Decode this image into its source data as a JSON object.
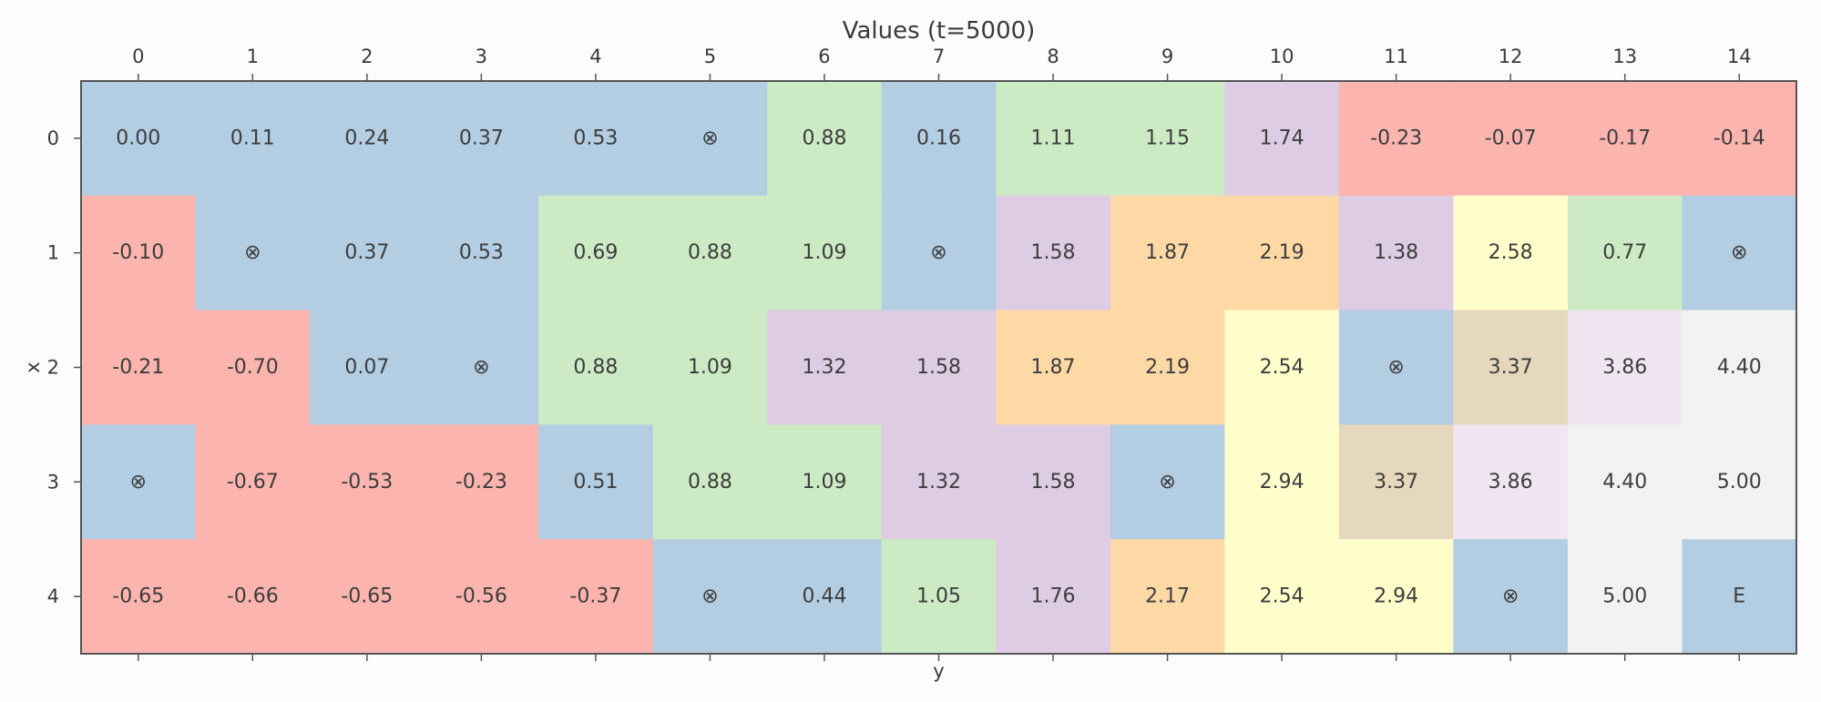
{
  "chart_data": {
    "type": "heatmap",
    "title": "Values (t=5000)",
    "xlabel": "y",
    "ylabel": "x",
    "x_ticks": [
      "0",
      "1",
      "2",
      "3",
      "4",
      "5",
      "6",
      "7",
      "8",
      "9",
      "10",
      "11",
      "12",
      "13",
      "14"
    ],
    "y_ticks": [
      "0",
      "1",
      "2",
      "3",
      "4"
    ],
    "tick_position_x": "top",
    "values": [
      [
        "0.00",
        "0.11",
        "0.24",
        "0.37",
        "0.53",
        "⊗",
        "0.88",
        "0.16",
        "1.11",
        "1.15",
        "1.74",
        "-0.23",
        "-0.07",
        "-0.17",
        "-0.14"
      ],
      [
        "-0.10",
        "⊗",
        "0.37",
        "0.53",
        "0.69",
        "0.88",
        "1.09",
        "⊗",
        "1.58",
        "1.87",
        "2.19",
        "1.38",
        "2.58",
        "0.77",
        "⊗"
      ],
      [
        "-0.21",
        "-0.70",
        "0.07",
        "⊗",
        "0.88",
        "1.09",
        "1.32",
        "1.58",
        "1.87",
        "2.19",
        "2.54",
        "⊗",
        "3.37",
        "3.86",
        "4.40"
      ],
      [
        "⊗",
        "-0.67",
        "-0.53",
        "-0.23",
        "0.51",
        "0.88",
        "1.09",
        "1.32",
        "1.58",
        "⊗",
        "2.94",
        "3.37",
        "3.86",
        "4.40",
        "5.00"
      ],
      [
        "-0.65",
        "-0.66",
        "-0.65",
        "-0.56",
        "-0.37",
        "⊗",
        "0.44",
        "1.05",
        "1.76",
        "2.17",
        "2.54",
        "2.94",
        "⊗",
        "5.00",
        "E"
      ]
    ],
    "cell_colors": [
      [
        "#b3cde3",
        "#b3cde3",
        "#b3cde3",
        "#b3cde3",
        "#b3cde3",
        "#b3cde3",
        "#ccebc5",
        "#b3cde3",
        "#ccebc5",
        "#ccebc5",
        "#decbe4",
        "#fbb4ae",
        "#fbb4ae",
        "#fbb4ae",
        "#fbb4ae"
      ],
      [
        "#fbb4ae",
        "#b3cde3",
        "#b3cde3",
        "#b3cde3",
        "#ccebc5",
        "#ccebc5",
        "#ccebc5",
        "#b3cde3",
        "#decbe4",
        "#fed9a6",
        "#fed9a6",
        "#decbe4",
        "#ffffcc",
        "#ccebc5",
        "#b3cde3"
      ],
      [
        "#fbb4ae",
        "#fbb4ae",
        "#b3cde3",
        "#b3cde3",
        "#ccebc5",
        "#ccebc5",
        "#decbe4",
        "#decbe4",
        "#fed9a6",
        "#fed9a6",
        "#ffffcc",
        "#b3cde3",
        "#e5d8bd",
        "#f0e6f2",
        "#f2f2f2"
      ],
      [
        "#b3cde3",
        "#fbb4ae",
        "#fbb4ae",
        "#fbb4ae",
        "#b3cde3",
        "#ccebc5",
        "#ccebc5",
        "#decbe4",
        "#decbe4",
        "#b3cde3",
        "#ffffcc",
        "#e5d8bd",
        "#f0e6f2",
        "#f2f2f2",
        "#f2f2f2"
      ],
      [
        "#fbb4ae",
        "#fbb4ae",
        "#fbb4ae",
        "#fbb4ae",
        "#fbb4ae",
        "#b3cde3",
        "#b3cde3",
        "#ccebc5",
        "#decbe4",
        "#fed9a6",
        "#ffffcc",
        "#ffffcc",
        "#b3cde3",
        "#f2f2f2",
        "#b3cde3"
      ]
    ],
    "grid": false,
    "legend": "none"
  }
}
